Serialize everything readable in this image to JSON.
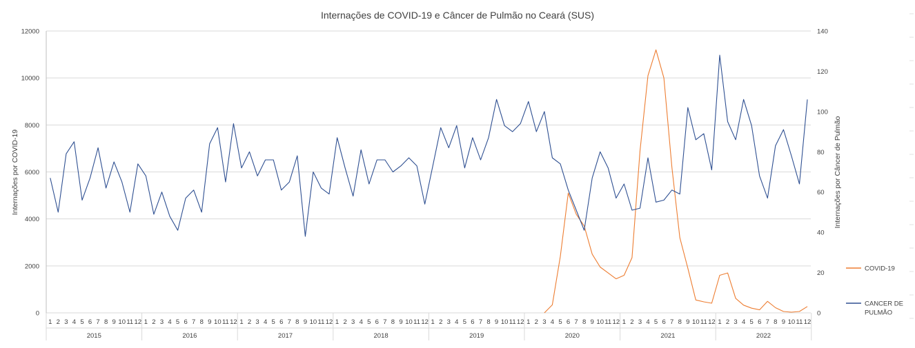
{
  "chart_data": {
    "type": "line",
    "title": "Internações de COVID-19 e Câncer de Pulmão no Ceará (SUS)",
    "y_left": {
      "label": "Internações por COVID-19",
      "range": [
        0,
        12000
      ],
      "ticks": [
        "0",
        "2000",
        "4000",
        "6000",
        "8000",
        "10000",
        "12000"
      ]
    },
    "y_right": {
      "label": "Internações por Câncer de Pulmão",
      "range": [
        0,
        140
      ],
      "ticks": [
        "0",
        "20",
        "40",
        "60",
        "80",
        "100",
        "120",
        "140"
      ]
    },
    "months": [
      "1",
      "2",
      "3",
      "4",
      "5",
      "6",
      "7",
      "8",
      "9",
      "10",
      "11",
      "12"
    ],
    "years": [
      "2015",
      "2016",
      "2017",
      "2018",
      "2019",
      "2020",
      "2021",
      "2022"
    ],
    "grid": true,
    "legend_position": "right",
    "series": [
      {
        "name": "COVID-19",
        "axis": "left",
        "color": "#ed7d31",
        "values": [
          0,
          0,
          0,
          0,
          0,
          0,
          0,
          0,
          0,
          0,
          0,
          0,
          0,
          0,
          0,
          0,
          0,
          0,
          0,
          0,
          0,
          0,
          0,
          0,
          0,
          0,
          0,
          0,
          0,
          0,
          0,
          0,
          0,
          0,
          0,
          0,
          0,
          0,
          0,
          0,
          0,
          0,
          0,
          0,
          0,
          0,
          0,
          0,
          0,
          0,
          0,
          0,
          0,
          0,
          0,
          0,
          0,
          0,
          0,
          0,
          0,
          0,
          0,
          340,
          2400,
          5100,
          4200,
          3700,
          2500,
          1950,
          1700,
          1450,
          1600,
          2350,
          6900,
          10100,
          11200,
          10000,
          6200,
          3200,
          1900,
          550,
          470,
          410,
          1600,
          1700,
          620,
          330,
          200,
          130,
          490,
          220,
          60,
          30,
          60,
          270
        ]
      },
      {
        "name": "CANCER DE PULMÃO",
        "axis": "right",
        "color": "#2e4f91",
        "values": [
          67,
          50,
          79,
          85,
          56,
          67,
          82,
          62,
          75,
          65,
          50,
          74,
          68,
          49,
          60,
          48,
          41,
          57,
          61,
          50,
          84,
          92,
          65,
          94,
          72,
          80,
          68,
          76,
          76,
          61,
          65,
          78,
          38,
          70,
          62,
          59,
          87,
          72,
          58,
          81,
          64,
          76,
          76,
          70,
          73,
          77,
          73,
          54,
          73,
          92,
          82,
          93,
          72,
          87,
          76,
          87,
          106,
          93,
          90,
          94,
          105,
          90,
          100,
          77,
          74,
          61,
          51,
          41,
          67,
          80,
          72,
          57,
          64,
          51,
          52,
          77,
          55,
          56,
          61,
          59,
          102,
          86,
          89,
          71,
          128,
          95,
          86,
          106,
          93,
          68,
          57,
          83,
          91,
          78,
          64,
          106
        ]
      }
    ]
  }
}
